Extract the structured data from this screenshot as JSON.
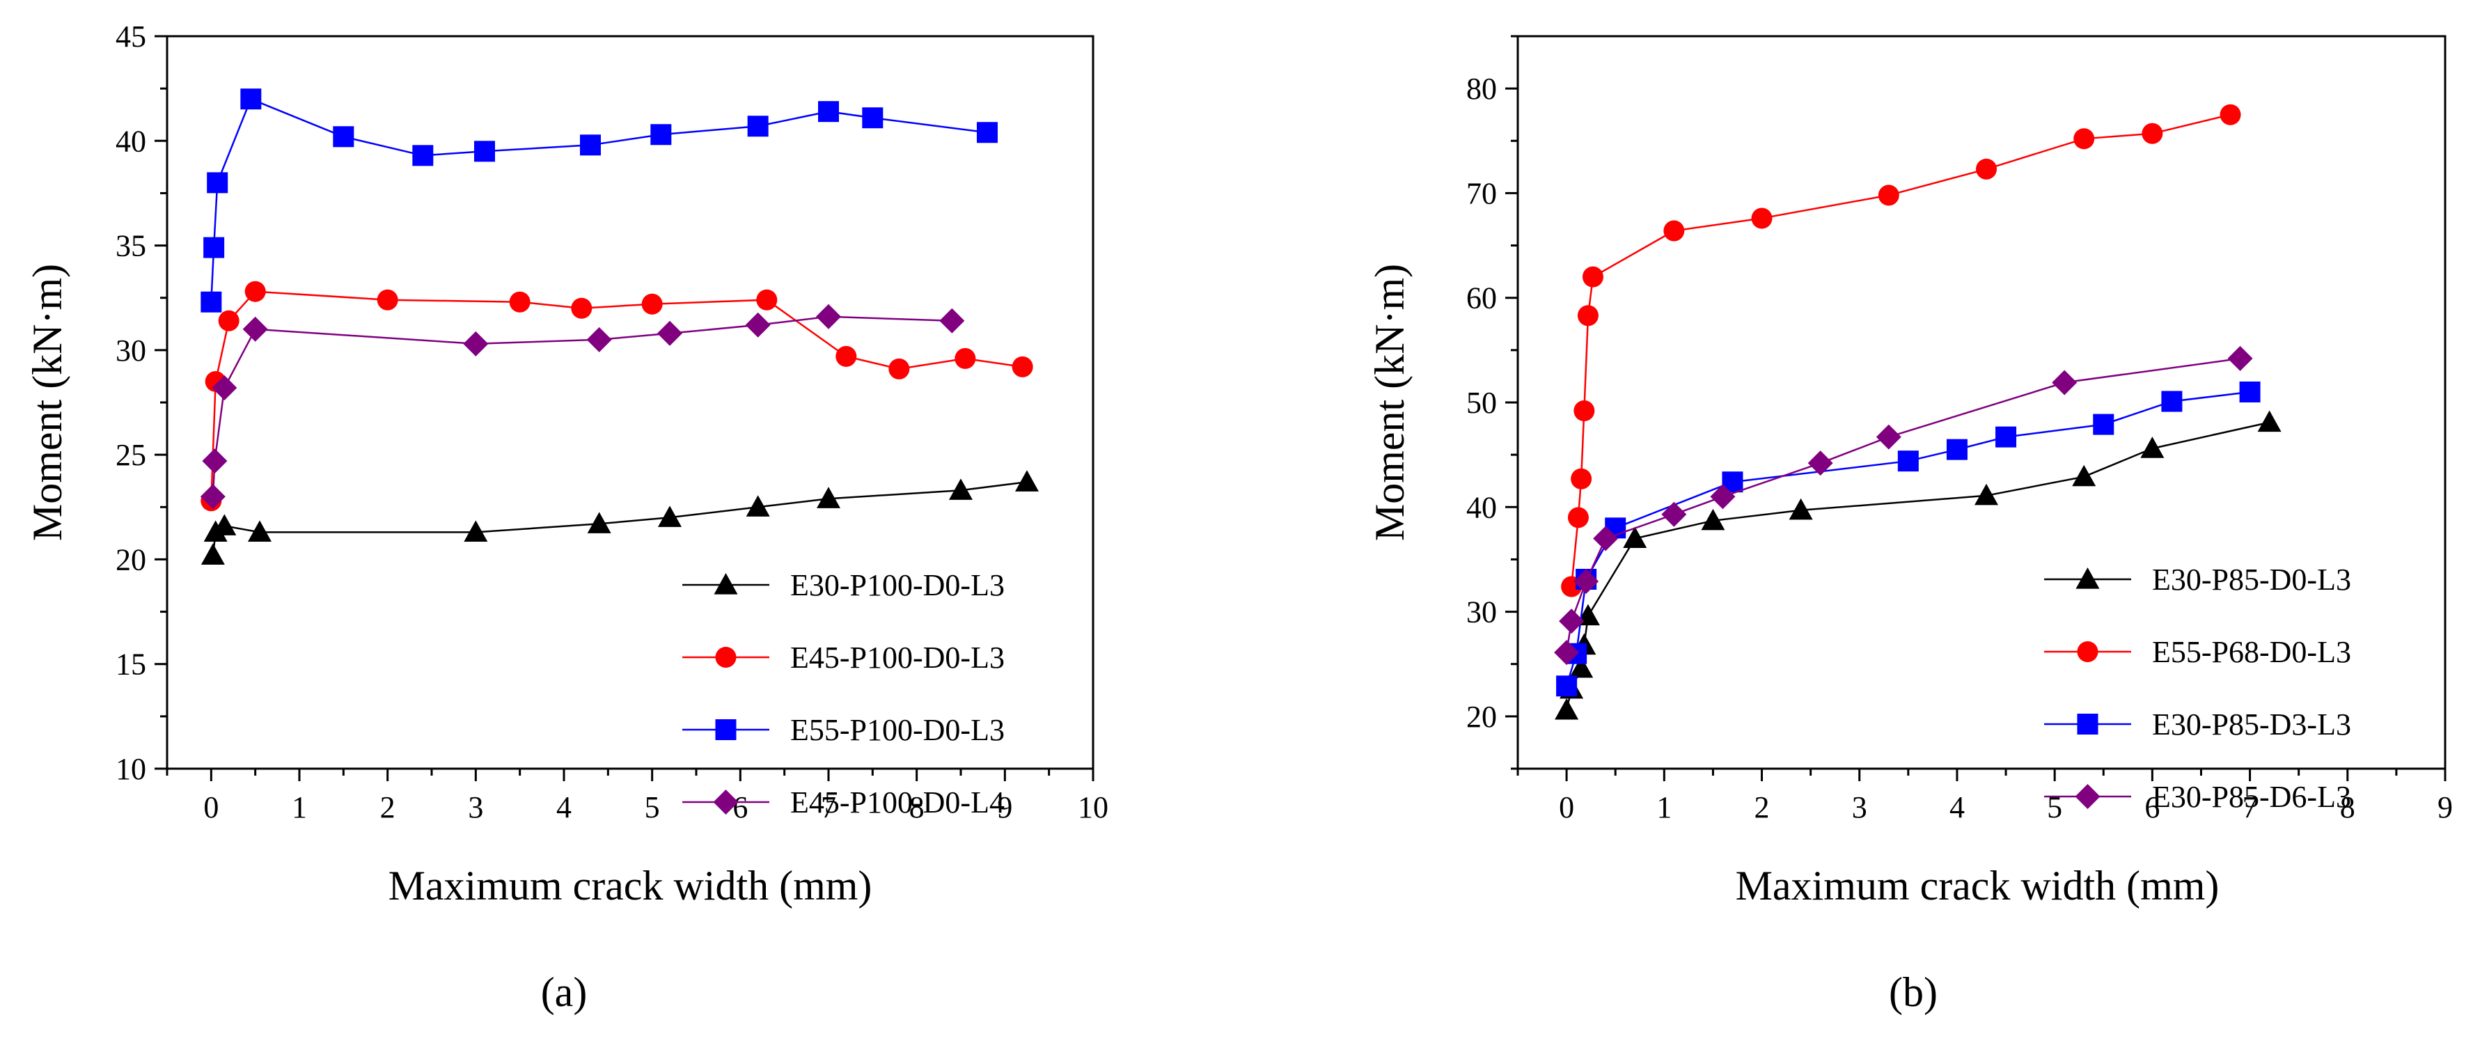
{
  "chart_data": [
    {
      "type": "line",
      "panel_label": "(a)",
      "xlabel": "Maximum crack width (mm)",
      "ylabel": "Moment (kN·m)",
      "xlim": [
        -0.5,
        10
      ],
      "ylim": [
        10,
        45
      ],
      "xticks": [
        0,
        1,
        2,
        3,
        4,
        5,
        6,
        7,
        8,
        9,
        10
      ],
      "yticks": [
        10,
        15,
        20,
        25,
        30,
        35,
        40,
        45
      ],
      "grid": false,
      "legend": "bottom-right",
      "series": [
        {
          "name": "E30-P100-D0-L3",
          "color": "#000000",
          "marker": "triangle",
          "x": [
            0.02,
            0.05,
            0.15,
            0.55,
            3.0,
            4.4,
            5.2,
            6.2,
            7.0,
            8.5,
            9.25
          ],
          "y": [
            20.2,
            21.3,
            21.6,
            21.3,
            21.3,
            21.7,
            22.0,
            22.5,
            22.9,
            23.3,
            23.7
          ]
        },
        {
          "name": "E45-P100-D0-L3",
          "color": "#ff0000",
          "marker": "circle",
          "x": [
            0.0,
            0.05,
            0.2,
            0.5,
            2.0,
            3.5,
            4.2,
            5.0,
            6.3,
            7.2,
            7.8,
            8.55,
            9.2
          ],
          "y": [
            22.8,
            28.5,
            31.4,
            32.8,
            32.4,
            32.3,
            32.0,
            32.2,
            32.4,
            29.7,
            29.1,
            29.6,
            29.2
          ]
        },
        {
          "name": "E55-P100-D0-L3",
          "color": "#0000ff",
          "marker": "square",
          "x": [
            0.0,
            0.03,
            0.07,
            0.45,
            1.5,
            2.4,
            3.1,
            4.3,
            5.1,
            6.2,
            7.0,
            7.5,
            8.8
          ],
          "y": [
            32.3,
            34.9,
            38.0,
            42.0,
            40.2,
            39.3,
            39.5,
            39.8,
            40.3,
            40.7,
            41.4,
            41.1,
            40.4
          ]
        },
        {
          "name": "E45-P100-D0-L4",
          "color": "#800080",
          "marker": "diamond",
          "x": [
            0.02,
            0.04,
            0.15,
            0.5,
            3.0,
            4.4,
            5.2,
            6.2,
            7.0,
            8.4
          ],
          "y": [
            23.0,
            24.7,
            28.2,
            31.0,
            30.3,
            30.5,
            30.8,
            31.2,
            31.6,
            31.4
          ]
        }
      ]
    },
    {
      "type": "line",
      "panel_label": "(b)",
      "xlabel": "Maximum crack width (mm)",
      "ylabel": "Moment (kN·m)",
      "xlim": [
        -0.5,
        9
      ],
      "ylim": [
        15,
        85
      ],
      "xticks": [
        0,
        1,
        2,
        3,
        4,
        5,
        6,
        7,
        8,
        9
      ],
      "yticks": [
        20,
        30,
        40,
        50,
        60,
        70,
        80
      ],
      "grid": false,
      "legend": "bottom-right",
      "series": [
        {
          "name": "E30-P85-D0-L3",
          "color": "#000000",
          "marker": "triangle",
          "x": [
            0.0,
            0.05,
            0.15,
            0.18,
            0.22,
            0.7,
            1.5,
            2.4,
            4.3,
            5.3,
            6.0,
            7.2
          ],
          "y": [
            20.6,
            22.6,
            24.6,
            26.8,
            29.6,
            37.0,
            38.7,
            39.7,
            41.1,
            42.9,
            45.6,
            48.1
          ]
        },
        {
          "name": "E55-P68-D0-L3",
          "color": "#ff0000",
          "marker": "circle",
          "x": [
            0.05,
            0.12,
            0.15,
            0.18,
            0.22,
            0.27,
            1.1,
            2.0,
            3.3,
            4.3,
            5.3,
            6.0,
            6.8
          ],
          "y": [
            32.4,
            39.0,
            42.7,
            49.2,
            58.3,
            62.0,
            66.4,
            67.6,
            69.8,
            72.3,
            75.2,
            75.7,
            77.5
          ]
        },
        {
          "name": "E30-P85-D3-L3",
          "color": "#0000ff",
          "marker": "square",
          "x": [
            0.0,
            0.1,
            0.2,
            0.5,
            1.7,
            3.5,
            4.0,
            4.5,
            5.5,
            6.2,
            7.0
          ],
          "y": [
            22.9,
            26.0,
            33.1,
            38.0,
            42.4,
            44.4,
            45.5,
            46.7,
            47.9,
            50.1,
            51.0
          ]
        },
        {
          "name": "E30-P85-D6-L3",
          "color": "#800080",
          "marker": "diamond",
          "x": [
            0.0,
            0.05,
            0.2,
            0.4,
            1.1,
            1.6,
            2.6,
            3.3,
            5.1,
            6.9
          ],
          "y": [
            26.1,
            29.1,
            32.9,
            37.0,
            39.3,
            41.0,
            44.2,
            46.7,
            51.9,
            54.2
          ]
        }
      ]
    }
  ]
}
